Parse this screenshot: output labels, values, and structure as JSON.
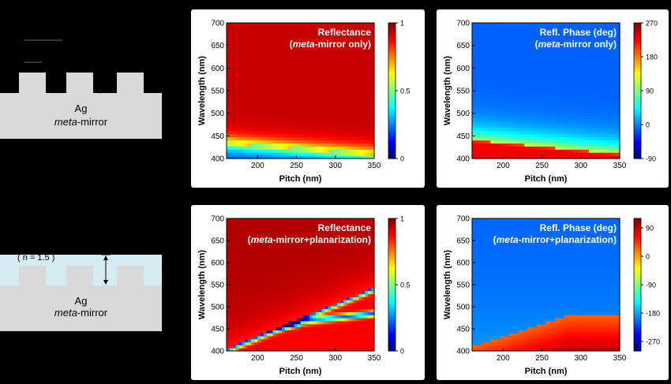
{
  "schematics": [
    {
      "material": "Ag",
      "mirror_italic": "meta",
      "mirror_rest": "-mirror",
      "index_label": ""
    },
    {
      "material": "Ag",
      "mirror_italic": "meta",
      "mirror_rest": "-mirror",
      "index_label": "( n = 1.5 )"
    }
  ],
  "colors": {
    "background": "#000000",
    "panel": "#ffffff",
    "structure": "#d9d9d9",
    "planarization": "#d6ecf3",
    "title_text": "#ffffff"
  },
  "chart_data": [
    {
      "type": "heatmap",
      "title_line1": "Reflectance",
      "title_italic": "meta",
      "title_line2_pre": "(",
      "title_line2_post": "-mirror only)",
      "xlabel": "Pitch (nm)",
      "ylabel": "Wavelength (nm)",
      "xlim": [
        160,
        350
      ],
      "ylim": [
        400,
        700
      ],
      "xticks": [
        "200",
        "250",
        "300",
        "350"
      ],
      "yticks": [
        "400",
        "450",
        "500",
        "550",
        "600",
        "650",
        "700"
      ],
      "colorbar_ticks": [
        "0",
        "0.5",
        "1"
      ],
      "colorbar_range": [
        0,
        1
      ],
      "pattern": "mirror_reflectance"
    },
    {
      "type": "heatmap",
      "title_line1": "Refl. Phase (deg)",
      "title_italic": "meta",
      "title_line2_pre": "(",
      "title_line2_post": "-mirror only)",
      "xlabel": "Pitch (nm)",
      "ylabel": "Wavelength (nm)",
      "xlim": [
        160,
        350
      ],
      "ylim": [
        400,
        700
      ],
      "xticks": [
        "200",
        "250",
        "300",
        "350"
      ],
      "yticks": [
        "400",
        "450",
        "500",
        "550",
        "600",
        "650",
        "700"
      ],
      "colorbar_ticks": [
        "-90",
        "0",
        "90",
        "180",
        "270"
      ],
      "colorbar_range": [
        -90,
        270
      ],
      "pattern": "mirror_phase"
    },
    {
      "type": "heatmap",
      "title_line1": "Reflectance",
      "title_italic": "meta",
      "title_line2_pre": "(",
      "title_line2_post": "-mirror+planarization)",
      "xlabel": "Pitch (nm)",
      "ylabel": "Wavelength (nm)",
      "xlim": [
        160,
        350
      ],
      "ylim": [
        400,
        700
      ],
      "xticks": [
        "200",
        "250",
        "300",
        "350"
      ],
      "yticks": [
        "400",
        "450",
        "500",
        "550",
        "600",
        "650",
        "700"
      ],
      "colorbar_ticks": [
        "0",
        "0.5",
        "1"
      ],
      "colorbar_range": [
        0,
        1
      ],
      "pattern": "planar_reflectance"
    },
    {
      "type": "heatmap",
      "title_line1": "Refl. Phase (deg)",
      "title_italic": "meta",
      "title_line2_pre": "(",
      "title_line2_post": "-mirror+planarization)",
      "xlabel": "Pitch (nm)",
      "ylabel": "Wavelength (nm)",
      "xlim": [
        160,
        350
      ],
      "ylim": [
        400,
        700
      ],
      "xticks": [
        "200",
        "250",
        "300",
        "350"
      ],
      "yticks": [
        "400",
        "450",
        "500",
        "550",
        "600",
        "650",
        "700"
      ],
      "colorbar_ticks": [
        "-270",
        "-180",
        "-90",
        "0",
        "90"
      ],
      "colorbar_range": [
        -300,
        120
      ],
      "pattern": "planar_phase"
    }
  ]
}
